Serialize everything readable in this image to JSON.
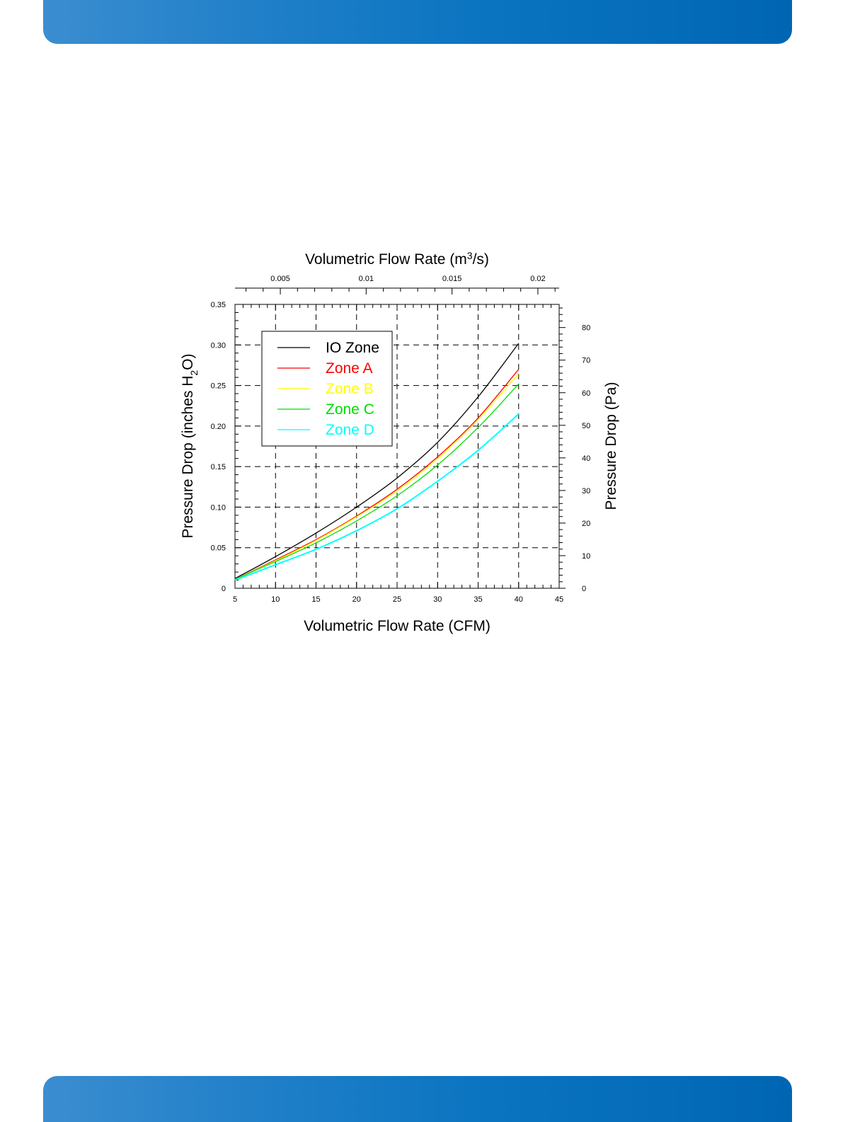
{
  "chart_data": {
    "type": "line",
    "title": "",
    "xlabel": "Volumetric Flow Rate (CFM)",
    "ylabel": "Pressure Drop (inches H",
    "ylabel_sub": "2",
    "ylabel_end": "O)",
    "x2label": "Volumetric Flow Rate (m",
    "x2label_sup": "3",
    "x2label_end": "/s)",
    "y2label": "Pressure Drop (Pa)",
    "xlim": [
      5,
      45
    ],
    "ylim": [
      0,
      0.35
    ],
    "x2lim": [
      0.00236,
      0.02124
    ],
    "y2lim": [
      0,
      87.1
    ],
    "xticks": [
      "5",
      "10",
      "15",
      "20",
      "25",
      "30",
      "35",
      "40",
      "45"
    ],
    "yticks": [
      "0",
      "0.05",
      "0.10",
      "0.15",
      "0.20",
      "0.25",
      "0.30",
      "0.35"
    ],
    "x2ticks": [
      "0.005",
      "0.01",
      "0.015",
      "0.02"
    ],
    "y2ticks": [
      "0",
      "10",
      "20",
      "30",
      "40",
      "50",
      "60",
      "70",
      "80"
    ],
    "grid": true,
    "legend_position": "top-left",
    "x": [
      5,
      10,
      15,
      20,
      25,
      30,
      35,
      40
    ],
    "series": [
      {
        "name": "IO Zone",
        "color": "#000000",
        "values": [
          0.012,
          0.039,
          0.068,
          0.1,
          0.136,
          0.18,
          0.236,
          0.302
        ]
      },
      {
        "name": "Zone A",
        "color": "#ff0000",
        "values": [
          0.011,
          0.035,
          0.06,
          0.089,
          0.122,
          0.162,
          0.21,
          0.27
        ]
      },
      {
        "name": "Zone B",
        "color": "#ffff00",
        "values": [
          0.011,
          0.034,
          0.059,
          0.088,
          0.12,
          0.16,
          0.208,
          0.265
        ]
      },
      {
        "name": "Zone C",
        "color": "#00dd00",
        "values": [
          0.011,
          0.033,
          0.056,
          0.083,
          0.114,
          0.152,
          0.198,
          0.252
        ]
      },
      {
        "name": "Zone D",
        "color": "#00ffff",
        "values": [
          0.01,
          0.029,
          0.048,
          0.071,
          0.098,
          0.132,
          0.17,
          0.215
        ]
      }
    ]
  }
}
